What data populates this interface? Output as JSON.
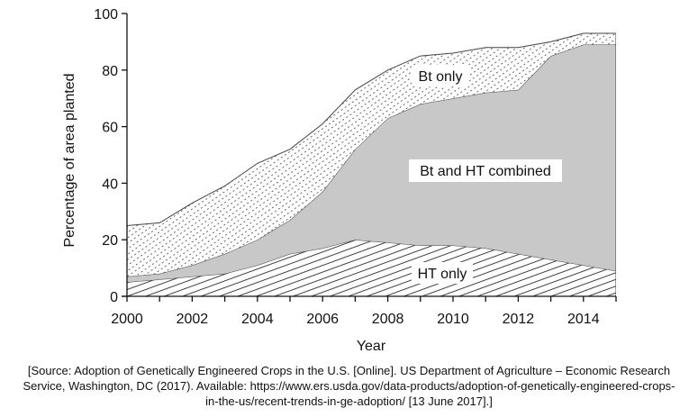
{
  "chart_data": {
    "type": "area",
    "xlabel": "Year",
    "ylabel": "Percentage of area planted",
    "xlim": [
      2000,
      2015
    ],
    "ylim": [
      0,
      100
    ],
    "x_ticks": [
      2000,
      2002,
      2004,
      2006,
      2008,
      2010,
      2012,
      2014
    ],
    "y_ticks": [
      0,
      20,
      40,
      60,
      80,
      100
    ],
    "grid": false,
    "legend": "none (regions labeled directly)",
    "stacked": true,
    "x": [
      2000,
      2001,
      2002,
      2003,
      2004,
      2005,
      2006,
      2007,
      2008,
      2009,
      2010,
      2011,
      2012,
      2013,
      2014,
      2015
    ],
    "series": [
      {
        "name": "HT only",
        "values": [
          5,
          6,
          7,
          8,
          11,
          15,
          17,
          20,
          19,
          18,
          18,
          17,
          15,
          13,
          11,
          9
        ],
        "fill": "diagonal-hatch"
      },
      {
        "name": "Bt and HT combined",
        "values": [
          2,
          2,
          4,
          7,
          9,
          12,
          20,
          32,
          44,
          50,
          52,
          55,
          58,
          72,
          78,
          80
        ],
        "fill": "#c8c8c8"
      },
      {
        "name": "Bt only",
        "values": [
          18,
          18,
          22,
          24,
          27,
          25,
          24,
          21,
          17,
          17,
          16,
          16,
          15,
          5,
          4,
          4
        ],
        "fill": "dotted"
      }
    ],
    "annotations": [
      "Bt only",
      "Bt and HT combined",
      "HT only"
    ]
  },
  "source_note": {
    "lines": [
      "[Source: Adoption of Genetically Engineered Crops in the U.S. [Online]. US Department of Agriculture – Economic Research",
      "Service, Washington, DC (2017). Available: https://www.ers.usda.gov/data-products/adoption-of-genetically-engineered-crops-",
      "in-the-us/recent-trends-in-ge-adoption/ [13 June 2017].]"
    ]
  },
  "colors": {
    "axis": "#111111",
    "combined_fill": "#c8c8c8",
    "outline": "#444444"
  }
}
